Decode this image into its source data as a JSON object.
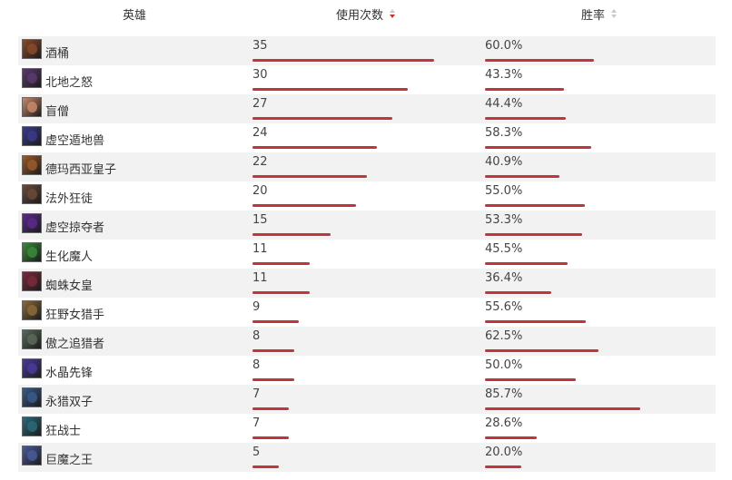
{
  "header": {
    "hero": "英雄",
    "uses": "使用次数",
    "winrate": "胜率"
  },
  "sort": {
    "uses": "desc",
    "winrate": "none"
  },
  "colors": {
    "bar": "#c0353a",
    "sort_active": "#c0392b",
    "row_stripe": "#f2f2f2"
  },
  "rows": [
    {
      "name": "酒桶",
      "uses": 35,
      "winrate": "60.0%",
      "winrate_value": 60.0,
      "avatar_color": "#8a4a2a"
    },
    {
      "name": "北地之怒",
      "uses": 30,
      "winrate": "43.3%",
      "winrate_value": 43.3,
      "avatar_color": "#5a3a6e"
    },
    {
      "name": "盲僧",
      "uses": 27,
      "winrate": "44.4%",
      "winrate_value": 44.4,
      "avatar_color": "#c98a6a"
    },
    {
      "name": "虚空遁地兽",
      "uses": 24,
      "winrate": "58.3%",
      "winrate_value": 58.3,
      "avatar_color": "#3a3a8a"
    },
    {
      "name": "德玛西亚皇子",
      "uses": 22,
      "winrate": "40.9%",
      "winrate_value": 40.9,
      "avatar_color": "#9a5a2a"
    },
    {
      "name": "法外狂徒",
      "uses": 20,
      "winrate": "55.0%",
      "winrate_value": 55.0,
      "avatar_color": "#6a4a3a"
    },
    {
      "name": "虚空掠夺者",
      "uses": 15,
      "winrate": "53.3%",
      "winrate_value": 53.3,
      "avatar_color": "#5a2a8a"
    },
    {
      "name": "生化魔人",
      "uses": 11,
      "winrate": "45.5%",
      "winrate_value": 45.5,
      "avatar_color": "#3a8a3a"
    },
    {
      "name": "蜘蛛女皇",
      "uses": 11,
      "winrate": "36.4%",
      "winrate_value": 36.4,
      "avatar_color": "#7a2a3a"
    },
    {
      "name": "狂野女猎手",
      "uses": 9,
      "winrate": "55.6%",
      "winrate_value": 55.6,
      "avatar_color": "#8a6a3a"
    },
    {
      "name": "傲之追猎者",
      "uses": 8,
      "winrate": "62.5%",
      "winrate_value": 62.5,
      "avatar_color": "#5a6a5a"
    },
    {
      "name": "水晶先锋",
      "uses": 8,
      "winrate": "50.0%",
      "winrate_value": 50.0,
      "avatar_color": "#4a3a9a"
    },
    {
      "name": "永猎双子",
      "uses": 7,
      "winrate": "85.7%",
      "winrate_value": 85.7,
      "avatar_color": "#3a5a8a"
    },
    {
      "name": "狂战士",
      "uses": 7,
      "winrate": "28.6%",
      "winrate_value": 28.6,
      "avatar_color": "#2a6a7a"
    },
    {
      "name": "巨魔之王",
      "uses": 5,
      "winrate": "20.0%",
      "winrate_value": 20.0,
      "avatar_color": "#4a5a9a"
    }
  ]
}
